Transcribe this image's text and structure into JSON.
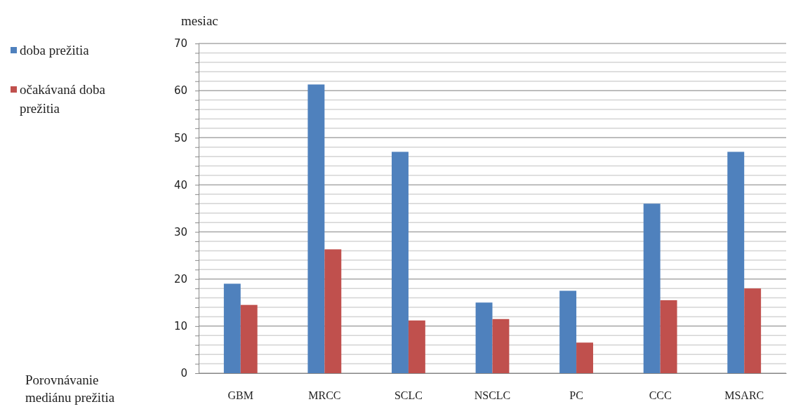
{
  "chart_data": {
    "type": "bar",
    "ylabel": "mesiac",
    "xlabel": "Porovnávanie mediánu prežitia",
    "categories": [
      "GBM",
      "MRCC",
      "SCLC",
      "NSCLC",
      "PC",
      "CCC",
      "MSARC"
    ],
    "series": [
      {
        "name": "doba prežitia",
        "color": "#4f81bd",
        "values": [
          19,
          61.3,
          47,
          15,
          17.5,
          36,
          47
        ]
      },
      {
        "name": "očakávaná doba prežitia",
        "color": "#c0504d",
        "values": [
          14.5,
          26.3,
          11.2,
          11.5,
          6.5,
          15.5,
          18
        ]
      }
    ],
    "ylim": [
      0,
      70
    ],
    "yticks": [
      0,
      {
        "value": 2,
        "label": null
      },
      {
        "value": 4,
        "label": null
      },
      {
        "value": 6,
        "label": null
      },
      {
        "value": 8,
        "label": null
      },
      10,
      {
        "value": 12,
        "label": null
      },
      {
        "value": 14,
        "label": null
      },
      {
        "value": 16,
        "label": null
      },
      {
        "value": 18,
        "label": null
      },
      20,
      {
        "value": 22,
        "label": null
      },
      {
        "value": 24,
        "label": null
      },
      {
        "value": 26,
        "label": null
      },
      {
        "value": 28,
        "label": null
      },
      30,
      {
        "value": 32,
        "label": null
      },
      {
        "value": 34,
        "label": null
      },
      {
        "value": 36,
        "label": null
      },
      {
        "value": 38,
        "label": null
      },
      40,
      {
        "value": 42,
        "label": null
      },
      {
        "value": 44,
        "label": null
      },
      {
        "value": 46,
        "label": null
      },
      {
        "value": 48,
        "label": null
      },
      50,
      {
        "value": 52,
        "label": null
      },
      {
        "value": 54,
        "label": null
      },
      {
        "value": 56,
        "label": null
      },
      {
        "value": 58,
        "label": null
      },
      60,
      {
        "value": 62,
        "label": null
      },
      {
        "value": 64,
        "label": null
      },
      {
        "value": 66,
        "label": null
      },
      {
        "value": 68,
        "label": null
      },
      70
    ],
    "grid": "y",
    "legend": "left"
  }
}
